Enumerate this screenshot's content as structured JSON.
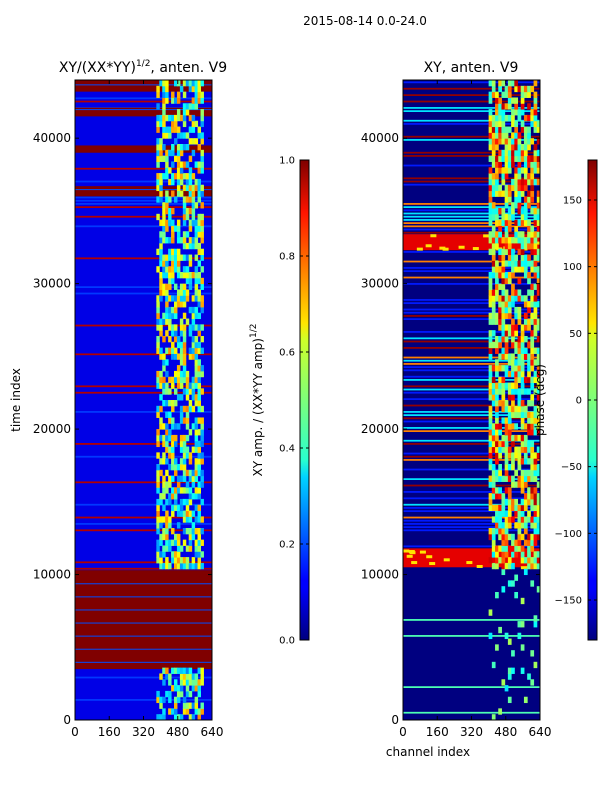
{
  "figure_title": "2015-08-14 0.0-24.0",
  "chart_data": [
    {
      "type": "heatmap",
      "title": "XY/(XX*YY)",
      "title_sup": "1/2",
      "title_suffix": ", anten. V9",
      "xlabel": "",
      "ylabel": "time index",
      "xlim": [
        0,
        640
      ],
      "ylim": [
        0,
        44000
      ],
      "x_ticks": [
        "0",
        "160",
        "320",
        "480",
        "640"
      ],
      "x_tick_values": [
        0,
        160,
        320,
        480,
        640
      ],
      "y_ticks": [
        "0",
        "10000",
        "20000",
        "30000",
        "40000"
      ],
      "y_tick_values": [
        0,
        10000,
        20000,
        30000,
        40000
      ],
      "background_level": 0.1,
      "flagged_level": 1.0,
      "flagged_time_ranges": [
        [
          3500,
          10300
        ],
        [
          36000,
          36700
        ],
        [
          39000,
          39500
        ],
        [
          41500,
          42100
        ],
        [
          43200,
          44000
        ]
      ],
      "active_channel_range": [
        380,
        600
      ],
      "colorbar": {
        "label": "XY amp. / (XX*YY amp)",
        "label_sup": "1/2",
        "min": 0.0,
        "max": 1.0,
        "ticks": [
          "0.0",
          "0.2",
          "0.4",
          "0.6",
          "0.8",
          "1.0"
        ],
        "tick_values": [
          0.0,
          0.2,
          0.4,
          0.6,
          0.8,
          1.0
        ]
      }
    },
    {
      "type": "heatmap",
      "title": "XY, anten. V9",
      "xlabel": "channel index",
      "ylabel": "",
      "xlim": [
        0,
        640
      ],
      "ylim": [
        0,
        44000
      ],
      "x_ticks": [
        "0",
        "160",
        "320",
        "480",
        "640"
      ],
      "x_tick_values": [
        0,
        160,
        320,
        480,
        640
      ],
      "y_ticks": [
        "0",
        "10000",
        "20000",
        "30000",
        "40000"
      ],
      "y_tick_values": [
        0,
        10000,
        20000,
        30000,
        40000
      ],
      "background_level": -180,
      "hot_time_ranges": [
        [
          10500,
          11800
        ],
        [
          32300,
          33400
        ]
      ],
      "active_channel_range": [
        400,
        640
      ],
      "colorbar": {
        "label": "phase (deg)",
        "min": -180,
        "max": 180,
        "ticks": [
          "−150",
          "−100",
          "−50",
          "0",
          "50",
          "100",
          "150"
        ],
        "tick_values": [
          -150,
          -100,
          -50,
          0,
          50,
          100,
          150
        ]
      }
    }
  ]
}
